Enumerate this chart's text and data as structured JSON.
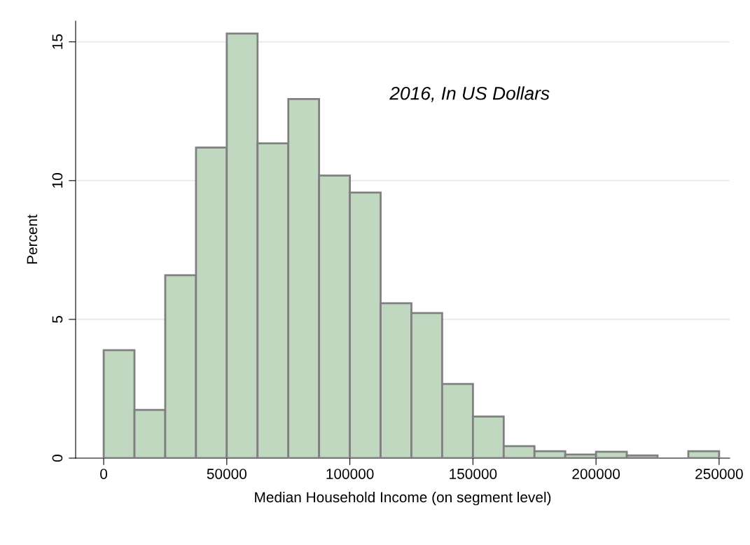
{
  "chart_data": {
    "type": "histogram",
    "xlabel": "Median Household Income (on segment level)",
    "ylabel": "Percent",
    "annotations": [
      "2016, In US Dollars"
    ],
    "bins": [
      0,
      12500,
      25000,
      37500,
      50000,
      62500,
      75000,
      87500,
      100000,
      112500,
      125000,
      137500,
      150000,
      162500,
      175000,
      187500,
      200000,
      212500,
      225000,
      237500,
      250000
    ],
    "values": [
      3.89,
      1.74,
      6.59,
      11.19,
      15.3,
      11.34,
      12.94,
      10.18,
      9.57,
      5.58,
      5.23,
      2.67,
      1.5,
      0.43,
      0.25,
      0.13,
      0.23,
      0.1,
      0,
      0.25
    ],
    "color": "#bfd8bf",
    "xlim": [
      -11400,
      254300
    ],
    "ylim": [
      0,
      15.75
    ],
    "xticks": [
      0,
      50000,
      100000,
      150000,
      200000,
      250000
    ],
    "yticks": [
      0,
      5,
      10,
      15
    ],
    "grid": "y"
  }
}
